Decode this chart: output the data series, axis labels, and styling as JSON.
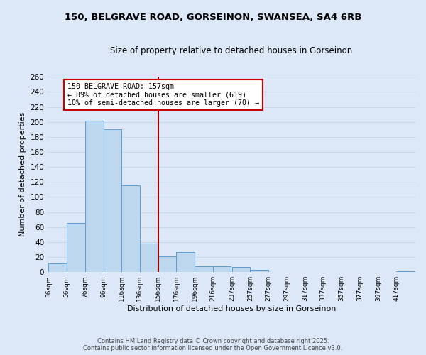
{
  "title": "150, BELGRAVE ROAD, GORSEINON, SWANSEA, SA4 6RB",
  "subtitle": "Size of property relative to detached houses in Gorseinon",
  "xlabel": "Distribution of detached houses by size in Gorseinon",
  "ylabel": "Number of detached properties",
  "bar_edges": [
    36,
    56,
    76,
    96,
    116,
    136,
    156,
    176,
    196,
    216,
    237,
    257,
    277,
    297,
    317,
    337,
    357,
    377,
    397,
    417,
    437
  ],
  "bar_heights": [
    12,
    65,
    202,
    190,
    116,
    38,
    21,
    27,
    8,
    8,
    7,
    3,
    0,
    0,
    0,
    0,
    0,
    0,
    0,
    1
  ],
  "bar_color": "#bdd7ee",
  "bar_edge_color": "#5b9bd5",
  "reference_line_x": 156,
  "reference_line_color": "#990000",
  "annotation_text": "150 BELGRAVE ROAD: 157sqm\n← 89% of detached houses are smaller (619)\n10% of semi-detached houses are larger (70) →",
  "annotation_box_color": "#ffffff",
  "annotation_box_edge_color": "#cc0000",
  "ylim": [
    0,
    260
  ],
  "yticks": [
    0,
    20,
    40,
    60,
    80,
    100,
    120,
    140,
    160,
    180,
    200,
    220,
    240,
    260
  ],
  "grid_color": "#c8d8e8",
  "background_color": "#dce8f8",
  "plot_bg_color": "#dce8f8",
  "footer_line1": "Contains HM Land Registry data © Crown copyright and database right 2025.",
  "footer_line2": "Contains public sector information licensed under the Open Government Licence v3.0."
}
